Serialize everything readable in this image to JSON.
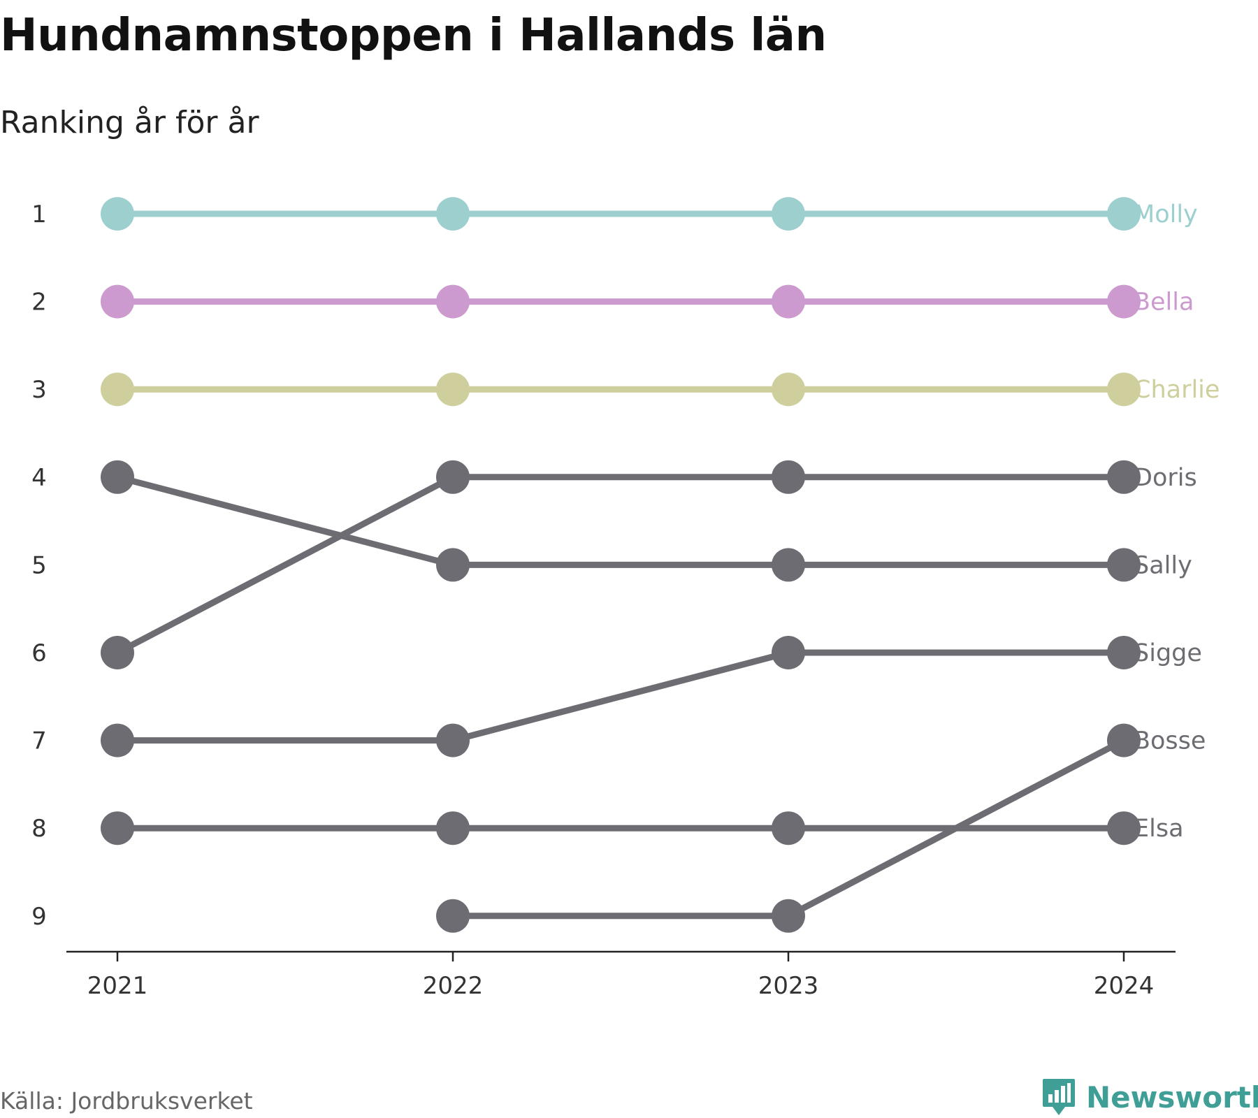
{
  "title": "Hundnamnstoppen i Hallands län",
  "subtitle": "Ranking år för år",
  "source": "Källa: Jordbruksverket",
  "brand": {
    "name": "Newsworthy",
    "color": "#3f9e95",
    "icon": "bar-chart-speech-bubble-icon"
  },
  "chart_data": {
    "type": "line",
    "chart_subtype": "bump chart",
    "x": [
      "2021",
      "2022",
      "2023",
      "2024"
    ],
    "y_ticks": [
      1,
      2,
      3,
      4,
      5,
      6,
      7,
      8,
      9
    ],
    "ylim": [
      1,
      9
    ],
    "y_reversed": true,
    "grid": false,
    "legend": "direct labels at right end of each line",
    "series": [
      {
        "name": "Molly",
        "values": [
          1,
          1,
          1,
          1
        ],
        "color": "#9dcfcf"
      },
      {
        "name": "Bella",
        "values": [
          2,
          2,
          2,
          2
        ],
        "color": "#cd9ad0"
      },
      {
        "name": "Charlie",
        "values": [
          3,
          3,
          3,
          3
        ],
        "color": "#cfce9d"
      },
      {
        "name": "Doris",
        "values": [
          6,
          4,
          4,
          4
        ],
        "color": "#6d6c72"
      },
      {
        "name": "Sally",
        "values": [
          4,
          5,
          5,
          5
        ],
        "color": "#6d6c72"
      },
      {
        "name": "Sigge",
        "values": [
          7,
          7,
          6,
          6
        ],
        "color": "#6d6c72"
      },
      {
        "name": "Bosse",
        "values": [
          null,
          9,
          9,
          7
        ],
        "color": "#6d6c72"
      },
      {
        "name": "Elsa",
        "values": [
          8,
          8,
          8,
          8
        ],
        "color": "#6d6c72"
      }
    ]
  }
}
